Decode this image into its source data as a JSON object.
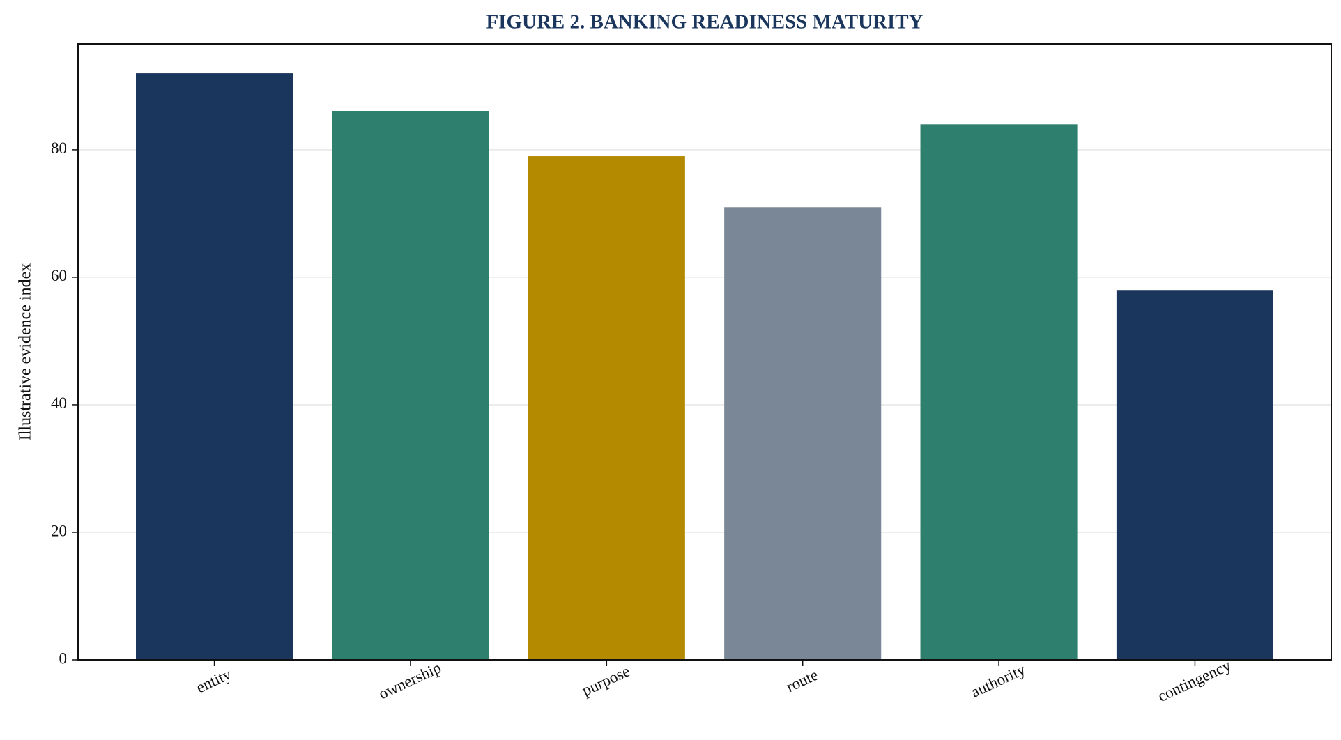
{
  "chart_data": {
    "type": "bar",
    "title": "FIGURE 2. BANKING READINESS MATURITY",
    "y_label": "Illustrative evidence index",
    "categories": [
      "entity",
      "ownership",
      "purpose",
      "route",
      "authority",
      "contingency"
    ],
    "values": [
      92,
      86,
      79,
      71,
      84,
      58
    ],
    "colors": [
      "#1a365d",
      "#2f7f6f",
      "#b38a00",
      "#7a8796",
      "#2f7f6f",
      "#1a365d"
    ],
    "ylim": [
      0,
      96.6
    ],
    "yticks": [
      0,
      20,
      40,
      60,
      80
    ],
    "grid": true
  }
}
